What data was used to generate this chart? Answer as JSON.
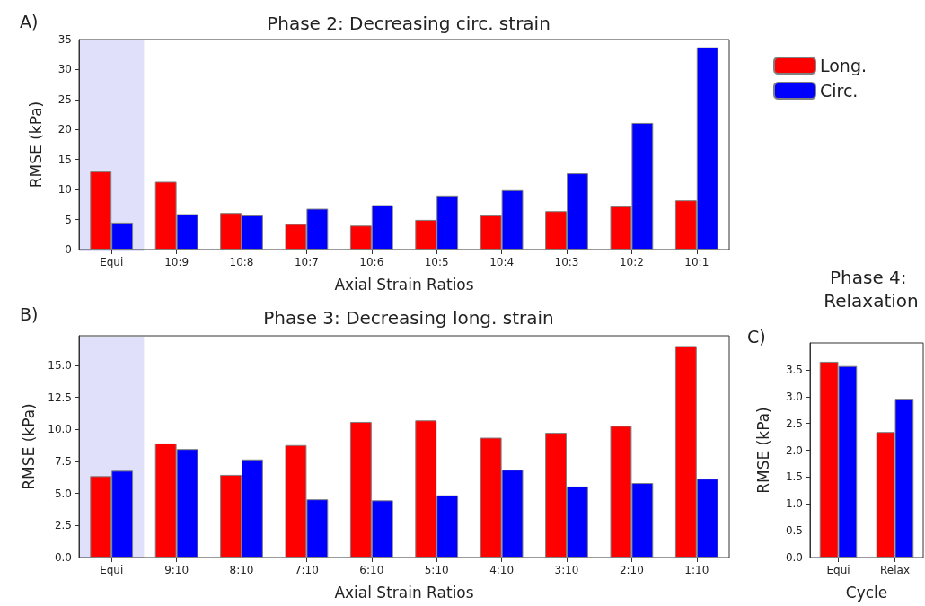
{
  "chart_data": [
    {
      "type": "bar",
      "title": "Phase 2: Decreasing circ. strain",
      "xlabel": "Axial Strain Ratios",
      "ylabel": "RMSE (kPa)",
      "annotations": [
        "A)"
      ],
      "categories": [
        "Equi",
        "10:9",
        "10:8",
        "10:7",
        "10:6",
        "10:5",
        "10:4",
        "10:3",
        "10:2",
        "10:1"
      ],
      "series": [
        {
          "name": "Long.",
          "color": "#ff0000",
          "values": [
            13.0,
            11.3,
            6.1,
            4.25,
            4.0,
            4.95,
            5.7,
            6.4,
            7.2,
            8.2
          ]
        },
        {
          "name": "Circ.",
          "color": "#0000ff",
          "values": [
            4.5,
            5.9,
            5.7,
            6.8,
            7.4,
            9.0,
            9.9,
            12.7,
            21.1,
            33.7
          ]
        }
      ],
      "ylim": [
        0,
        35
      ],
      "yticks": [
        0,
        5,
        10,
        15,
        20,
        25,
        30,
        35
      ],
      "grid": false,
      "legend": "right",
      "bands": [
        {
          "axis": "x",
          "from": "Equi",
          "to": "Equi",
          "color": "#e0e0fa"
        }
      ]
    },
    {
      "type": "bar",
      "title": "Phase 3: Decreasing long. strain",
      "xlabel": "Axial Strain Ratios",
      "ylabel": "RMSE (kPa)",
      "annotations": [
        "B)"
      ],
      "categories": [
        "Equi",
        "9:10",
        "8:10",
        "7:10",
        "6:10",
        "5:10",
        "4:10",
        "3:10",
        "2:10",
        "1:10"
      ],
      "series": [
        {
          "color": "#ff0000",
          "values": [
            6.35,
            8.9,
            6.45,
            8.77,
            10.58,
            10.7,
            9.35,
            9.73,
            10.27,
            16.5
          ]
        },
        {
          "color": "#0000ff",
          "values": [
            6.77,
            8.46,
            7.65,
            4.54,
            4.46,
            4.85,
            6.85,
            5.54,
            5.81,
            6.15
          ]
        }
      ],
      "ylim": [
        0,
        17.3
      ],
      "yticks": [
        {
          "value": 0,
          "label": "0.0"
        },
        2.5,
        {
          "value": 5,
          "label": "5.0"
        },
        7.5,
        {
          "value": 10,
          "label": "10.0"
        },
        12.5,
        {
          "value": 15,
          "label": "15.0"
        }
      ],
      "grid": false,
      "bands": [
        {
          "axis": "x",
          "from": "Equi",
          "to": "Equi",
          "color": "#e0e0fa"
        }
      ]
    },
    {
      "type": "bar",
      "title": "Phase 4: Relaxation",
      "xlabel": "Cycle",
      "ylabel": "RMSE (kPa)",
      "annotations": [
        "C)"
      ],
      "categories": [
        "Equi",
        "Relax"
      ],
      "series": [
        {
          "color": "#ff0000",
          "values": [
            3.65,
            2.34
          ]
        },
        {
          "color": "#0000ff",
          "values": [
            3.57,
            2.96
          ]
        }
      ],
      "ylim": [
        0,
        4.0
      ],
      "yticks": [
        {
          "value": 0,
          "label": "0.0"
        },
        0.5,
        {
          "value": 1,
          "label": "1.0"
        },
        1.5,
        {
          "value": 2,
          "label": "2.0"
        },
        2.5,
        {
          "value": 3,
          "label": "3.0"
        },
        3.5
      ],
      "grid": false
    }
  ]
}
